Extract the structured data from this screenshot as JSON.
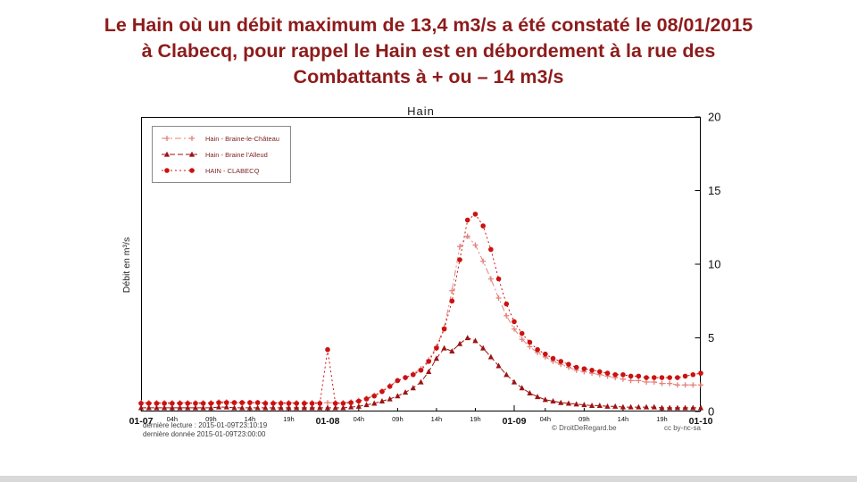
{
  "colors": {
    "title_text": "#8e1b1b",
    "legend_text": "#7d1f1f",
    "footer_text": "#3c3c3c",
    "credit_text": "#555555"
  },
  "page_title": {
    "line1": "Le Hain où un débit maximum de 13,4 m3/s a été constaté le 08/01/2015",
    "line2": "à Clabecq, pour rappel le Hain est en débordement à la rue des",
    "line3": "Combattants à + ou – 14 m3/s"
  },
  "chart_data": {
    "type": "line",
    "title": "Hain",
    "ylabel": "Débit en m³/s",
    "ylim": [
      0,
      20
    ],
    "yticks": [
      0,
      5,
      10,
      15,
      20
    ],
    "x_hours_range": [
      0,
      72
    ],
    "x_start_hour": 0,
    "x_interval_hours": 1,
    "grid": false,
    "legend_position": "top-left",
    "xticks": [
      {
        "hour": 0,
        "label": "01-07",
        "major": true
      },
      {
        "hour": 4,
        "label": "04h",
        "major": false
      },
      {
        "hour": 9,
        "label": "09h",
        "major": false
      },
      {
        "hour": 14,
        "label": "14h",
        "major": false
      },
      {
        "hour": 19,
        "label": "19h",
        "major": false
      },
      {
        "hour": 24,
        "label": "01-08",
        "major": true
      },
      {
        "hour": 28,
        "label": "04h",
        "major": false
      },
      {
        "hour": 33,
        "label": "09h",
        "major": false
      },
      {
        "hour": 38,
        "label": "14h",
        "major": false
      },
      {
        "hour": 43,
        "label": "19h",
        "major": false
      },
      {
        "hour": 48,
        "label": "01-09",
        "major": true
      },
      {
        "hour": 52,
        "label": "04h",
        "major": false
      },
      {
        "hour": 57,
        "label": "09h",
        "major": false
      },
      {
        "hour": 62,
        "label": "14h",
        "major": false
      },
      {
        "hour": 67,
        "label": "19h",
        "major": false
      },
      {
        "hour": 72,
        "label": "01-10",
        "major": true
      }
    ],
    "series": [
      {
        "name": "Hain - Braine-le-Château",
        "color": "#e4827d",
        "marker": "plus",
        "dash": "7 3 2 3",
        "values": [
          0.6,
          0.6,
          0.6,
          0.6,
          0.6,
          0.6,
          0.6,
          0.6,
          0.6,
          0.6,
          0.65,
          0.65,
          0.6,
          0.6,
          0.6,
          0.6,
          0.6,
          0.6,
          0.6,
          0.6,
          0.6,
          0.6,
          0.6,
          0.6,
          0.6,
          0.6,
          0.6,
          0.65,
          0.75,
          0.9,
          1.1,
          1.4,
          1.75,
          2.1,
          2.3,
          2.55,
          2.9,
          3.5,
          4.4,
          5.7,
          8.2,
          11.2,
          11.9,
          11.3,
          10.2,
          9.0,
          7.7,
          6.5,
          5.6,
          4.9,
          4.4,
          4.0,
          3.7,
          3.4,
          3.2,
          3.0,
          2.8,
          2.7,
          2.6,
          2.5,
          2.4,
          2.3,
          2.2,
          2.1,
          2.1,
          2.0,
          2.0,
          1.9,
          1.9,
          1.8,
          1.8,
          1.8,
          1.8
        ]
      },
      {
        "name": "Hain - Braine l'Alleud",
        "color": "#9e1212",
        "marker": "triangle",
        "dash": "6 3",
        "values": [
          0.25,
          0.25,
          0.25,
          0.25,
          0.25,
          0.25,
          0.25,
          0.25,
          0.25,
          0.25,
          0.3,
          0.3,
          0.25,
          0.25,
          0.25,
          0.25,
          0.25,
          0.25,
          0.25,
          0.25,
          0.25,
          0.25,
          0.25,
          0.25,
          0.25,
          0.25,
          0.25,
          0.3,
          0.35,
          0.45,
          0.55,
          0.7,
          0.85,
          1.05,
          1.3,
          1.6,
          2.0,
          2.7,
          3.6,
          4.3,
          4.1,
          4.6,
          5.0,
          4.8,
          4.3,
          3.7,
          3.1,
          2.5,
          2.0,
          1.6,
          1.25,
          1.0,
          0.8,
          0.7,
          0.6,
          0.55,
          0.5,
          0.45,
          0.4,
          0.4,
          0.35,
          0.35,
          0.3,
          0.3,
          0.3,
          0.3,
          0.3,
          0.25,
          0.25,
          0.25,
          0.25,
          0.25,
          0.25
        ]
      },
      {
        "name": "HAIN - CLABECQ",
        "color": "#cc1111",
        "marker": "circle",
        "dash": "2 3",
        "values": [
          0.55,
          0.55,
          0.55,
          0.55,
          0.55,
          0.55,
          0.55,
          0.55,
          0.55,
          0.55,
          0.6,
          0.6,
          0.6,
          0.6,
          0.6,
          0.6,
          0.55,
          0.55,
          0.55,
          0.55,
          0.55,
          0.55,
          0.55,
          0.55,
          4.2,
          0.55,
          0.55,
          0.6,
          0.7,
          0.85,
          1.05,
          1.35,
          1.7,
          2.1,
          2.3,
          2.5,
          2.8,
          3.4,
          4.3,
          5.6,
          7.5,
          10.3,
          13.0,
          13.4,
          12.6,
          11.0,
          9.0,
          7.3,
          6.1,
          5.3,
          4.7,
          4.2,
          3.9,
          3.6,
          3.4,
          3.2,
          3.0,
          2.9,
          2.8,
          2.7,
          2.6,
          2.5,
          2.5,
          2.4,
          2.4,
          2.3,
          2.3,
          2.3,
          2.3,
          2.3,
          2.4,
          2.5,
          2.6
        ]
      }
    ],
    "footer": {
      "last_read": "dernière lecture : 2015-01-09T23:10:19",
      "last_data": "dernière donnée  2015-01-09T23:00:00",
      "copyright": "© DroitDeRegard.be",
      "license": "cc by-nc-sa"
    }
  }
}
